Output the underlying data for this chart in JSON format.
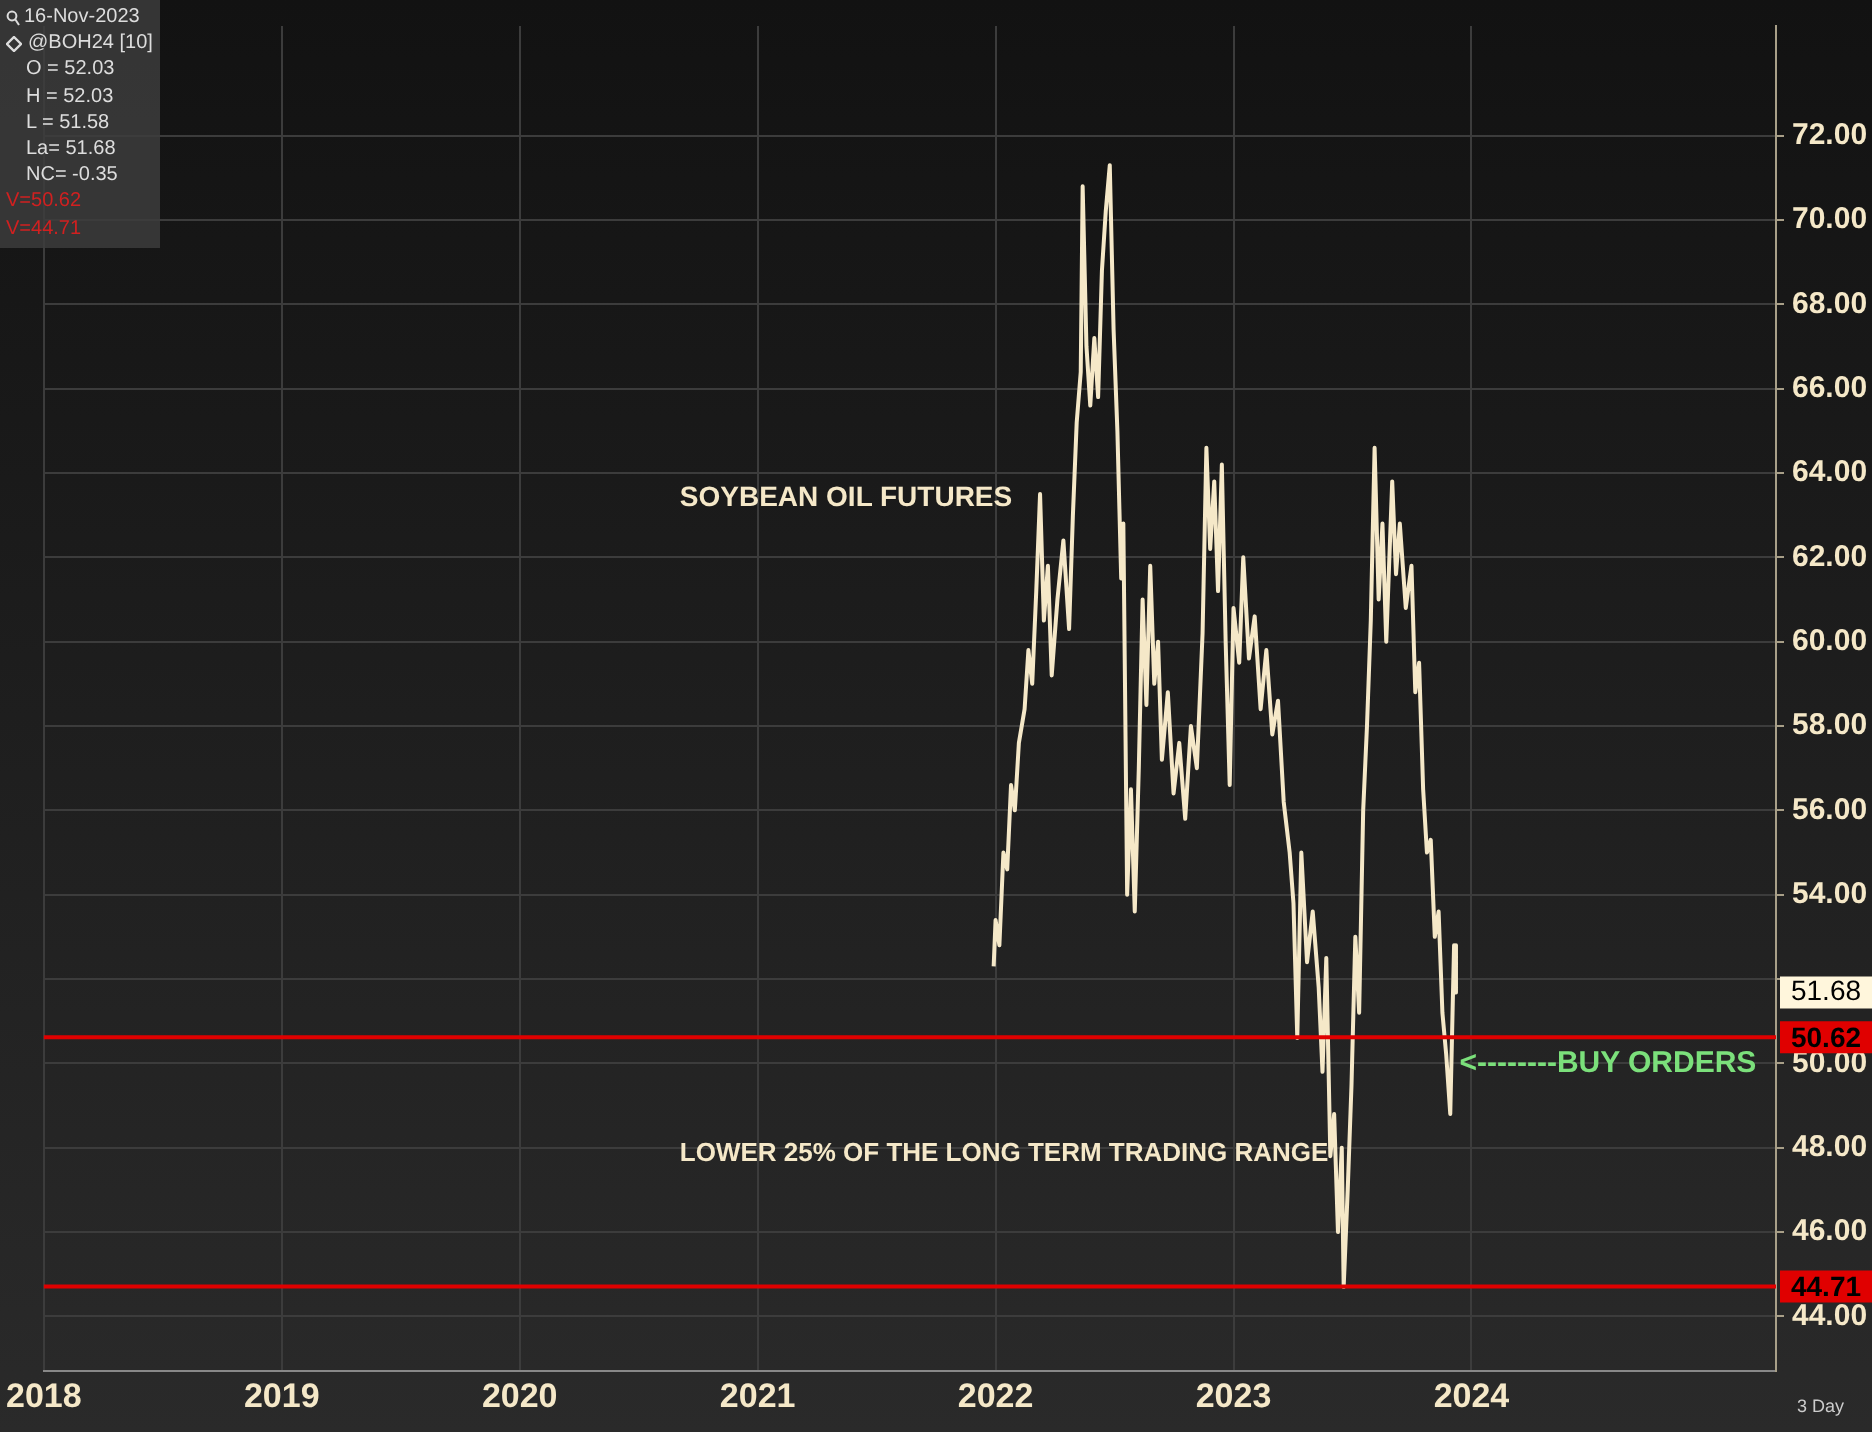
{
  "chart_data": {
    "type": "line",
    "title": "SOYBEAN OIL FUTURES",
    "x": [
      2021.992,
      2022.0,
      2022.016,
      2022.033,
      2022.049,
      2022.065,
      2022.081,
      2022.098,
      2022.122,
      2022.138,
      2022.154,
      2022.171,
      2022.187,
      2022.203,
      2022.22,
      2022.236,
      2022.26,
      2022.285,
      2022.309,
      2022.325,
      2022.341,
      2022.358,
      2022.366,
      2022.382,
      2022.398,
      2022.415,
      2022.431,
      2022.447,
      2022.463,
      2022.48,
      2022.496,
      2022.512,
      2022.528,
      2022.537,
      2022.553,
      2022.569,
      2022.585,
      2022.602,
      2022.618,
      2022.634,
      2022.65,
      2022.667,
      2022.683,
      2022.699,
      2022.724,
      2022.748,
      2022.772,
      2022.797,
      2022.821,
      2022.846,
      2022.87,
      2022.886,
      2022.902,
      2022.919,
      2022.935,
      2022.951,
      2022.967,
      2022.984,
      2023.0,
      2023.024,
      2023.041,
      2023.065,
      2023.089,
      2023.114,
      2023.138,
      2023.163,
      2023.187,
      2023.211,
      2023.236,
      2023.252,
      2023.268,
      2023.285,
      2023.309,
      2023.333,
      2023.358,
      2023.374,
      2023.39,
      2023.407,
      2023.423,
      2023.439,
      2023.455,
      2023.463,
      2023.48,
      2023.496,
      2023.512,
      2023.528,
      2023.545,
      2023.561,
      2023.577,
      2023.593,
      2023.61,
      2023.626,
      2023.642,
      2023.667,
      2023.683,
      2023.699,
      2023.724,
      2023.748,
      2023.764,
      2023.78,
      2023.797,
      2023.813,
      2023.829,
      2023.846,
      2023.862,
      2023.878,
      2023.894,
      2023.911,
      2023.927,
      2023.935
    ],
    "series": [
      {
        "color": "#f5e8c8",
        "values": [
          52.3,
          53.4,
          52.8,
          55.0,
          54.6,
          56.6,
          56.0,
          57.6,
          58.4,
          59.8,
          59.0,
          61.2,
          63.5,
          60.5,
          61.8,
          59.2,
          61.0,
          62.4,
          60.3,
          63.0,
          65.2,
          66.4,
          70.8,
          67.0,
          65.6,
          67.2,
          65.8,
          68.8,
          70.2,
          71.3,
          67.4,
          65.0,
          61.5,
          62.8,
          54.0,
          56.5,
          53.6,
          57.0,
          61.0,
          58.5,
          61.8,
          59.0,
          60.0,
          57.2,
          58.8,
          56.4,
          57.6,
          55.8,
          58.0,
          57.0,
          60.2,
          64.6,
          62.2,
          63.8,
          61.2,
          64.2,
          60.0,
          56.6,
          60.8,
          59.5,
          62.0,
          59.6,
          60.6,
          58.4,
          59.8,
          57.8,
          58.6,
          56.2,
          55.0,
          53.8,
          50.6,
          55.0,
          52.4,
          53.6,
          51.8,
          49.8,
          52.5,
          47.8,
          48.8,
          46.0,
          48.0,
          44.7,
          47.0,
          49.5,
          53.0,
          51.2,
          56.0,
          58.0,
          60.5,
          64.6,
          61.0,
          62.8,
          60.0,
          63.8,
          61.6,
          62.8,
          60.8,
          61.8,
          58.8,
          59.5,
          56.5,
          55.0,
          55.3,
          53.0,
          53.6,
          51.2,
          50.2,
          48.8,
          52.8,
          51.68
        ]
      }
    ],
    "xlim": [
      2018,
      2025.28
    ],
    "xticks": [
      2018,
      2019,
      2020,
      2021,
      2022,
      2023,
      2024
    ],
    "ylim": [
      42.7,
      74.6
    ],
    "yticks": [
      {
        "value": 44,
        "label": "44.00"
      },
      {
        "value": 46,
        "label": "46.00"
      },
      {
        "value": 48,
        "label": "48.00"
      },
      {
        "value": 50,
        "label": "50.00"
      },
      {
        "value": 52,
        "label": null
      },
      {
        "value": 54,
        "label": "54.00"
      },
      {
        "value": 56,
        "label": "56.00"
      },
      {
        "value": 58,
        "label": "58.00"
      },
      {
        "value": 60,
        "label": "60.00"
      },
      {
        "value": 62,
        "label": "62.00"
      },
      {
        "value": 64,
        "label": "64.00"
      },
      {
        "value": 66,
        "label": "66.00"
      },
      {
        "value": 68,
        "label": "68.00"
      },
      {
        "value": 70,
        "label": "70.00"
      },
      {
        "value": 72,
        "label": "72.00"
      }
    ],
    "ref_lines": [
      {
        "axis": "y",
        "value": 50.62,
        "label": "50.62",
        "color": "#e00000"
      },
      {
        "axis": "y",
        "value": 44.71,
        "label": "44.71",
        "color": "#e00000"
      }
    ],
    "annotations": [
      "16-Nov-2023",
      "@BOH24 [10]",
      "O = 52.03",
      "H = 52.03",
      "L = 51.58",
      "La= 51.68",
      "NC= -0.35",
      "V=50.62",
      "V=44.71",
      "LOWER 25% OF THE LONG TERM TRADING RANGE",
      "3 Day",
      "51.68",
      {
        "text": "<--------BUY ORDERS",
        "x": 2023.916,
        "y": 50.0
      }
    ],
    "grid": true,
    "legend": false
  }
}
